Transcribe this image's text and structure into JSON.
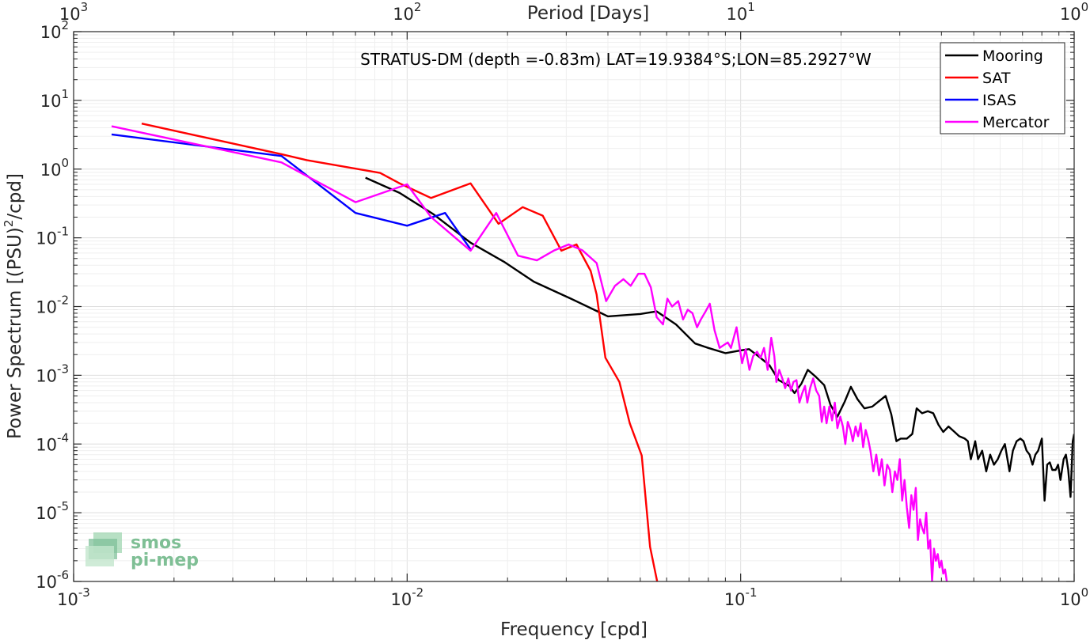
{
  "chart_data": {
    "type": "line",
    "title": "STRATUS-DM (depth =-0.83m) LAT=19.9384°S;LON=85.2927°W",
    "xlabel": "Frequency [cpd]",
    "ylabel_main": "Power Spectrum [(PSU)",
    "ylabel_sup": "2",
    "ylabel_tail": "/cpd]",
    "top_xlabel": "Period [Days]",
    "x_scale": "log",
    "y_scale": "log",
    "xlim": [
      0.001,
      1
    ],
    "ylim": [
      1e-06,
      100
    ],
    "grid": true,
    "legend_position": "top-right",
    "x_ticks": [
      {
        "value": 0.001,
        "base": "10",
        "exp": "-3"
      },
      {
        "value": 0.01,
        "base": "10",
        "exp": "-2"
      },
      {
        "value": 0.1,
        "base": "10",
        "exp": "-1"
      },
      {
        "value": 1,
        "base": "10",
        "exp": "0"
      }
    ],
    "top_ticks": [
      {
        "value": 0.001,
        "base": "10",
        "exp": "3"
      },
      {
        "value": 0.01,
        "base": "10",
        "exp": "2"
      },
      {
        "value": 0.1,
        "base": "10",
        "exp": "1"
      },
      {
        "value": 1,
        "base": "10",
        "exp": "0"
      }
    ],
    "y_ticks": [
      {
        "value": 1e-06,
        "base": "10",
        "exp": "-6"
      },
      {
        "value": 1e-05,
        "base": "10",
        "exp": "-5"
      },
      {
        "value": 0.0001,
        "base": "10",
        "exp": "-4"
      },
      {
        "value": 0.001,
        "base": "10",
        "exp": "-3"
      },
      {
        "value": 0.01,
        "base": "10",
        "exp": "-2"
      },
      {
        "value": 0.1,
        "base": "10",
        "exp": "-1"
      },
      {
        "value": 1,
        "base": "10",
        "exp": "0"
      },
      {
        "value": 10,
        "base": "10",
        "exp": "1"
      },
      {
        "value": 100,
        "base": "10",
        "exp": "2"
      }
    ],
    "series": [
      {
        "name": "Mooring",
        "color": "#000000",
        "points": [
          [
            0.0075,
            0.75
          ],
          [
            0.0095,
            0.45
          ],
          [
            0.012,
            0.22
          ],
          [
            0.0155,
            0.085
          ],
          [
            0.0195,
            0.045
          ],
          [
            0.024,
            0.023
          ],
          [
            0.031,
            0.013
          ],
          [
            0.04,
            0.0072
          ],
          [
            0.05,
            0.0078
          ],
          [
            0.056,
            0.0085
          ],
          [
            0.064,
            0.0055
          ],
          [
            0.073,
            0.0029
          ],
          [
            0.08,
            0.0025
          ],
          [
            0.09,
            0.0021
          ],
          [
            0.1,
            0.0023
          ],
          [
            0.106,
            0.0024
          ],
          [
            0.113,
            0.0019
          ],
          [
            0.122,
            0.0014
          ],
          [
            0.13,
            0.00085
          ],
          [
            0.14,
            0.0007
          ],
          [
            0.145,
            0.00055
          ],
          [
            0.152,
            0.00075
          ],
          [
            0.159,
            0.0012
          ],
          [
            0.168,
            0.00095
          ],
          [
            0.178,
            0.00072
          ],
          [
            0.186,
            0.00037
          ],
          [
            0.195,
            0.00025
          ],
          [
            0.205,
            0.00041
          ],
          [
            0.214,
            0.00068
          ],
          [
            0.224,
            0.00045
          ],
          [
            0.235,
            0.00033
          ],
          [
            0.248,
            0.00035
          ],
          [
            0.26,
            0.00042
          ],
          [
            0.272,
            0.0005
          ],
          [
            0.283,
            0.00027
          ],
          [
            0.293,
            0.00011
          ],
          [
            0.302,
            0.00012
          ],
          [
            0.315,
            0.00012
          ],
          [
            0.327,
            0.00014
          ],
          [
            0.337,
            0.00033
          ],
          [
            0.35,
            0.00028
          ],
          [
            0.364,
            0.0003
          ],
          [
            0.378,
            0.00028
          ],
          [
            0.392,
            0.00019
          ],
          [
            0.405,
            0.00015
          ],
          [
            0.42,
            0.00018
          ],
          [
            0.438,
            0.00015
          ],
          [
            0.452,
            0.00013
          ],
          [
            0.47,
            0.00012
          ],
          [
            0.48,
            0.00011
          ],
          [
            0.49,
            6e-05
          ],
          [
            0.505,
            0.00011
          ],
          [
            0.515,
            6e-05
          ],
          [
            0.53,
            8e-05
          ],
          [
            0.545,
            4e-05
          ],
          [
            0.56,
            7e-05
          ],
          [
            0.575,
            5e-05
          ],
          [
            0.59,
            6e-05
          ],
          [
            0.605,
            8e-05
          ],
          [
            0.62,
            0.0001
          ],
          [
            0.64,
            4e-05
          ],
          [
            0.655,
            8e-05
          ],
          [
            0.672,
            0.00011
          ],
          [
            0.69,
            0.00012
          ],
          [
            0.705,
            0.00011
          ],
          [
            0.72,
            8e-05
          ],
          [
            0.735,
            7e-05
          ],
          [
            0.75,
            5e-05
          ],
          [
            0.765,
            7e-05
          ],
          [
            0.78,
            8e-05
          ],
          [
            0.8,
            0.00012
          ],
          [
            0.815,
            1.5e-05
          ],
          [
            0.83,
            5e-05
          ],
          [
            0.845,
            5.4e-05
          ],
          [
            0.86,
            4.2e-05
          ],
          [
            0.88,
            4.2e-05
          ],
          [
            0.895,
            5e-05
          ],
          [
            0.91,
            3e-05
          ],
          [
            0.93,
            6e-05
          ],
          [
            0.945,
            7e-05
          ],
          [
            0.96,
            4.2e-05
          ],
          [
            0.975,
            1.7e-05
          ],
          [
            0.99,
            0.00011
          ],
          [
            1,
            0.00014
          ]
        ]
      },
      {
        "name": "SAT",
        "color": "#ff0000",
        "points": [
          [
            0.0016,
            4.6
          ],
          [
            0.0042,
            1.65
          ],
          [
            0.005,
            1.35
          ],
          [
            0.0083,
            0.88
          ],
          [
            0.0095,
            0.62
          ],
          [
            0.0118,
            0.38
          ],
          [
            0.0155,
            0.62
          ],
          [
            0.0188,
            0.16
          ],
          [
            0.0222,
            0.28
          ],
          [
            0.0255,
            0.21
          ],
          [
            0.029,
            0.065
          ],
          [
            0.0322,
            0.08
          ],
          [
            0.0355,
            0.033
          ],
          [
            0.037,
            0.015
          ],
          [
            0.0393,
            0.0018
          ],
          [
            0.0433,
            0.0008
          ],
          [
            0.0465,
            0.0002
          ],
          [
            0.0505,
            6.8e-05
          ],
          [
            0.0535,
            3.2e-06
          ],
          [
            0.0562,
            1e-06
          ]
        ]
      },
      {
        "name": "ISAS",
        "color": "#0000ff",
        "points": [
          [
            0.0013,
            3.2
          ],
          [
            0.0042,
            1.55
          ],
          [
            0.007,
            0.23
          ],
          [
            0.01,
            0.15
          ],
          [
            0.013,
            0.23
          ],
          [
            0.0155,
            0.068
          ]
        ]
      },
      {
        "name": "Mercator",
        "color": "#ff00ff",
        "points": [
          [
            0.0013,
            4.2
          ],
          [
            0.0042,
            1.25
          ],
          [
            0.007,
            0.33
          ],
          [
            0.01,
            0.6
          ],
          [
            0.0118,
            0.2
          ],
          [
            0.0155,
            0.065
          ],
          [
            0.0185,
            0.23
          ],
          [
            0.0215,
            0.055
          ],
          [
            0.0245,
            0.047
          ],
          [
            0.0275,
            0.065
          ],
          [
            0.0305,
            0.08
          ],
          [
            0.0335,
            0.066
          ],
          [
            0.037,
            0.043
          ],
          [
            0.0395,
            0.012
          ],
          [
            0.042,
            0.02
          ],
          [
            0.0445,
            0.025
          ],
          [
            0.0468,
            0.02
          ],
          [
            0.0493,
            0.03
          ],
          [
            0.0515,
            0.03
          ],
          [
            0.0538,
            0.019
          ],
          [
            0.056,
            0.007
          ],
          [
            0.0585,
            0.0055
          ],
          [
            0.0603,
            0.013
          ],
          [
            0.0623,
            0.01
          ],
          [
            0.065,
            0.012
          ],
          [
            0.0672,
            0.0065
          ],
          [
            0.0694,
            0.009
          ],
          [
            0.0717,
            0.008
          ],
          [
            0.074,
            0.005
          ],
          [
            0.076,
            0.0065
          ],
          [
            0.0785,
            0.0085
          ],
          [
            0.0808,
            0.011
          ],
          [
            0.0835,
            0.0045
          ],
          [
            0.0865,
            0.0025
          ],
          [
            0.0895,
            0.0028
          ],
          [
            0.0915,
            0.003
          ],
          [
            0.0935,
            0.0025
          ],
          [
            0.0953,
            0.0035
          ],
          [
            0.0972,
            0.005
          ],
          [
            0.099,
            0.0028
          ],
          [
            0.101,
            0.0015
          ],
          [
            0.1035,
            0.0024
          ],
          [
            0.1063,
            0.0012
          ],
          [
            0.109,
            0.0019
          ],
          [
            0.112,
            0.0022
          ],
          [
            0.1148,
            0.0018
          ],
          [
            0.1175,
            0.0025
          ],
          [
            0.1205,
            0.0012
          ],
          [
            0.1235,
            0.0035
          ],
          [
            0.1262,
            0.0019
          ],
          [
            0.128,
            0.0008
          ],
          [
            0.1305,
            0.0012
          ],
          [
            0.1333,
            0.0009
          ],
          [
            0.136,
            0.00065
          ],
          [
            0.139,
            0.0009
          ],
          [
            0.1415,
            0.0006
          ],
          [
            0.144,
            0.0008
          ],
          [
            0.147,
            0.00085
          ],
          [
            0.15,
            0.0004
          ],
          [
            0.153,
            0.00055
          ],
          [
            0.156,
            0.0007
          ],
          [
            0.1585,
            0.0004
          ],
          [
            0.1615,
            0.00065
          ],
          [
            0.165,
            0.0009
          ],
          [
            0.1685,
            0.0006
          ],
          [
            0.172,
            0.0005
          ],
          [
            0.175,
            0.00021
          ],
          [
            0.178,
            0.00035
          ],
          [
            0.181,
            0.0002
          ],
          [
            0.1845,
            0.00035
          ],
          [
            0.188,
            0.00022
          ],
          [
            0.1915,
            0.0004
          ],
          [
            0.195,
            0.00017
          ],
          [
            0.199,
            0.00025
          ],
          [
            0.2025,
            0.00018
          ],
          [
            0.206,
            0.0001
          ],
          [
            0.2095,
            0.00021
          ],
          [
            0.2135,
            0.00016
          ],
          [
            0.217,
            0.00011
          ],
          [
            0.221,
            0.00018
          ],
          [
            0.225,
            0.00013
          ],
          [
            0.229,
            0.0002
          ],
          [
            0.233,
            9e-05
          ],
          [
            0.237,
            0.00016
          ],
          [
            0.241,
            0.00012
          ],
          [
            0.245,
            8e-05
          ],
          [
            0.25,
            4e-05
          ],
          [
            0.255,
            7e-05
          ],
          [
            0.26,
            3.5e-05
          ],
          [
            0.265,
            6e-05
          ],
          [
            0.27,
            2.5e-05
          ],
          [
            0.275,
            5e-05
          ],
          [
            0.28,
            4.2e-05
          ],
          [
            0.285,
            2e-05
          ],
          [
            0.29,
            4e-05
          ],
          [
            0.295,
            3e-05
          ],
          [
            0.3,
            6e-05
          ],
          [
            0.305,
            1.5e-05
          ],
          [
            0.31,
            3e-05
          ],
          [
            0.315,
            1.2e-05
          ],
          [
            0.32,
            6e-06
          ],
          [
            0.325,
            1.8e-05
          ],
          [
            0.33,
            1.1e-05
          ],
          [
            0.335,
            2.3e-05
          ],
          [
            0.34,
            4e-06
          ],
          [
            0.345,
            8e-06
          ],
          [
            0.35,
            6e-06
          ],
          [
            0.355,
            5e-06
          ],
          [
            0.36,
            1e-05
          ],
          [
            0.365,
            3e-06
          ],
          [
            0.37,
            4e-06
          ],
          [
            0.375,
            1e-06
          ],
          [
            0.38,
            3e-06
          ],
          [
            0.385,
            2e-06
          ],
          [
            0.39,
            2.5e-06
          ],
          [
            0.395,
            1.6e-06
          ],
          [
            0.4,
            2e-06
          ],
          [
            0.405,
            1.3e-06
          ],
          [
            0.41,
            1.5e-06
          ],
          [
            0.415,
            1e-06
          ]
        ]
      }
    ]
  },
  "logo": {
    "line1": "smos",
    "line2": "pi-mep"
  }
}
